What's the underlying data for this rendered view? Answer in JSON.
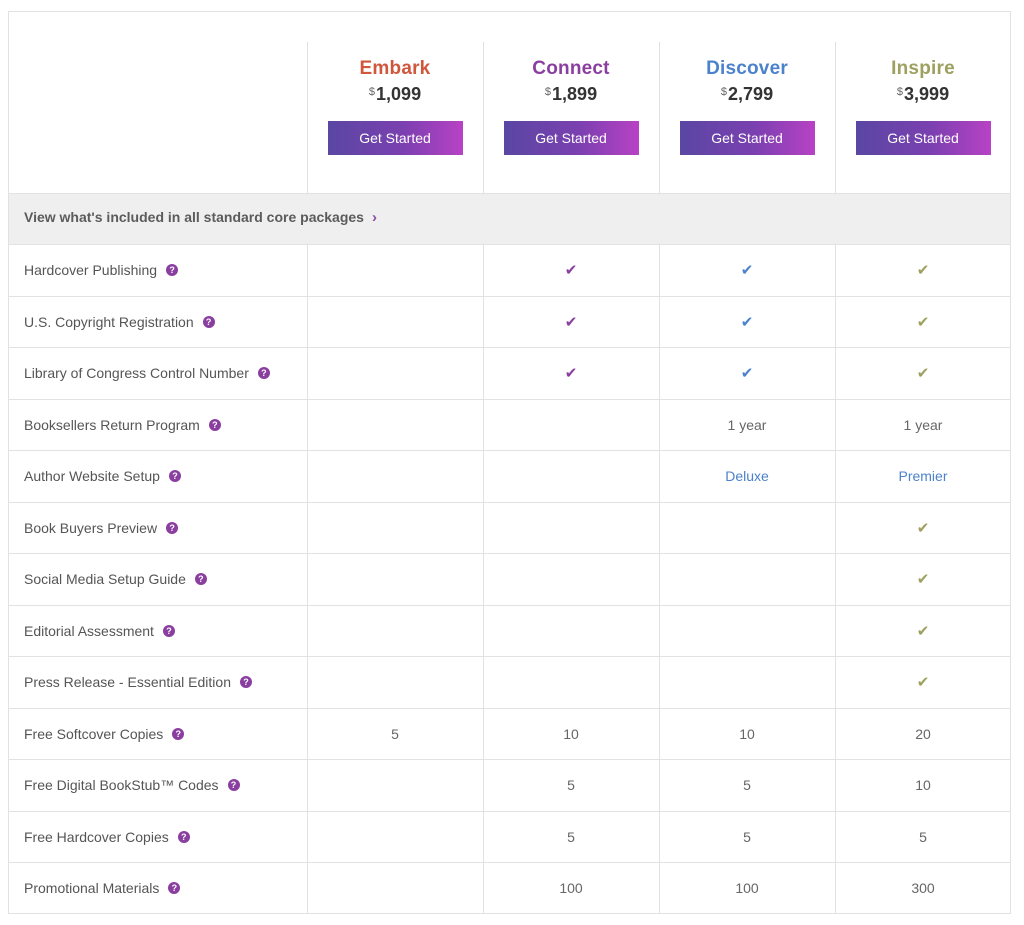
{
  "plans": [
    {
      "name": "Embark",
      "currency": "$",
      "price": "1,099",
      "button": "Get Started",
      "color": "#d1563c"
    },
    {
      "name": "Connect",
      "currency": "$",
      "price": "1,899",
      "button": "Get Started",
      "color": "#8a3fa0"
    },
    {
      "name": "Discover",
      "currency": "$",
      "price": "2,799",
      "button": "Get Started",
      "color": "#4b82cc"
    },
    {
      "name": "Inspire",
      "currency": "$",
      "price": "3,999",
      "button": "Get Started",
      "color": "#9ea060"
    }
  ],
  "banner": {
    "label": "View what's included in all standard core packages",
    "chevron": "›"
  },
  "help_icon": "?",
  "check_icon": "✔",
  "features": [
    {
      "label": "Hardcover Publishing",
      "cells": [
        "",
        "check",
        "check",
        "check"
      ]
    },
    {
      "label": "U.S. Copyright Registration",
      "cells": [
        "",
        "check",
        "check",
        "check"
      ]
    },
    {
      "label": "Library of Congress Control Number",
      "cells": [
        "",
        "check",
        "check",
        "check"
      ]
    },
    {
      "label": "Booksellers Return Program",
      "cells": [
        "",
        "",
        "1 year",
        "1 year"
      ]
    },
    {
      "label": "Author Website Setup",
      "cells": [
        "",
        "",
        "Deluxe",
        "Premier"
      ]
    },
    {
      "label": "Book Buyers Preview",
      "cells": [
        "",
        "",
        "",
        "check"
      ]
    },
    {
      "label": "Social Media Setup Guide",
      "cells": [
        "",
        "",
        "",
        "check"
      ]
    },
    {
      "label": "Editorial Assessment",
      "cells": [
        "",
        "",
        "",
        "check"
      ]
    },
    {
      "label": "Press Release - Essential Edition",
      "cells": [
        "",
        "",
        "",
        "check"
      ]
    },
    {
      "label": "Free Softcover Copies",
      "cells": [
        "5",
        "10",
        "10",
        "20"
      ]
    },
    {
      "label": "Free Digital BookStub™ Codes",
      "cells": [
        "",
        "5",
        "5",
        "10"
      ]
    },
    {
      "label": "Free Hardcover Copies",
      "cells": [
        "",
        "5",
        "5",
        "5"
      ]
    },
    {
      "label": "Promotional Materials",
      "cells": [
        "",
        "100",
        "100",
        "300"
      ]
    }
  ]
}
